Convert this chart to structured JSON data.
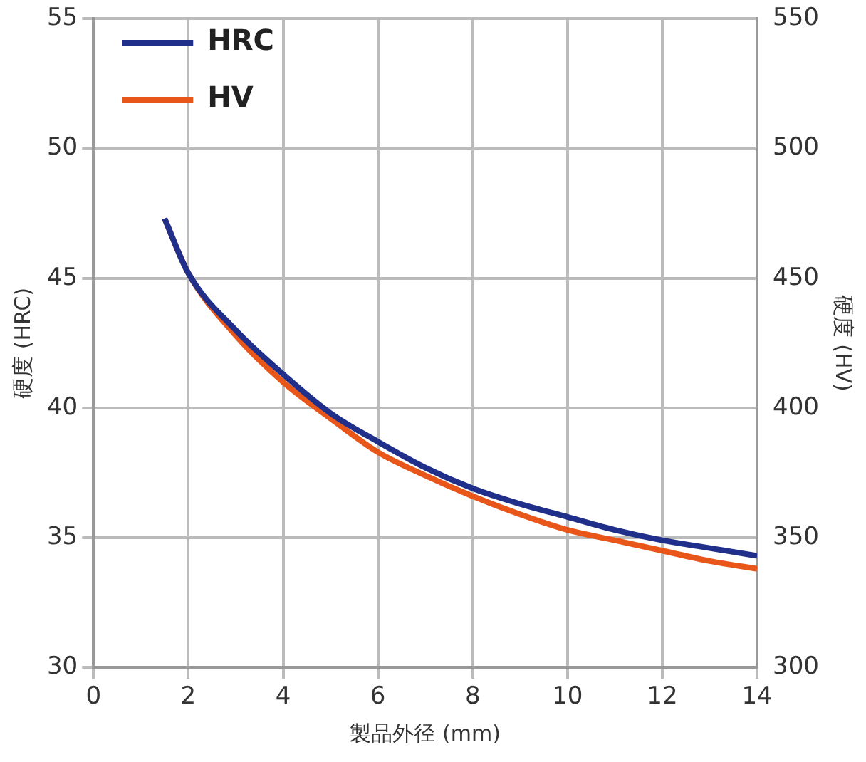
{
  "chart_data": {
    "type": "line",
    "xlabel": "製品外径 (mm)",
    "ylabel": "硬度 (HRC)",
    "y2label": "硬度 (HV)",
    "xlim": [
      0,
      14
    ],
    "xticks": [
      0,
      2,
      4,
      6,
      8,
      10,
      12,
      14
    ],
    "ylim": [
      30,
      55
    ],
    "yticks": [
      30,
      35,
      40,
      45,
      50,
      55
    ],
    "y2lim": [
      300,
      550
    ],
    "y2ticks": [
      300,
      350,
      400,
      450,
      500,
      550
    ],
    "grid": true,
    "legend": "top left",
    "marker": "none",
    "line_style": "solid",
    "series": [
      {
        "name": "HRC",
        "color": "#1f2f8a",
        "x": [
          1.5,
          2,
          3,
          4,
          5,
          6,
          7,
          8,
          9,
          10,
          11,
          12,
          13,
          14
        ],
        "values": [
          47.3,
          45.2,
          43.0,
          41.3,
          39.8,
          38.7,
          37.7,
          36.9,
          36.3,
          35.8,
          35.3,
          34.9,
          34.6,
          34.3
        ]
      },
      {
        "name": "HV",
        "color": "#e8561a",
        "axis": "y2",
        "x": [
          1.5,
          2,
          3,
          4,
          5,
          6,
          7,
          8,
          9,
          10,
          11,
          12,
          13,
          14
        ],
        "values": [
          473,
          452,
          428,
          410,
          396,
          383,
          374,
          366,
          359,
          353,
          349,
          345,
          341,
          338
        ]
      }
    ]
  }
}
